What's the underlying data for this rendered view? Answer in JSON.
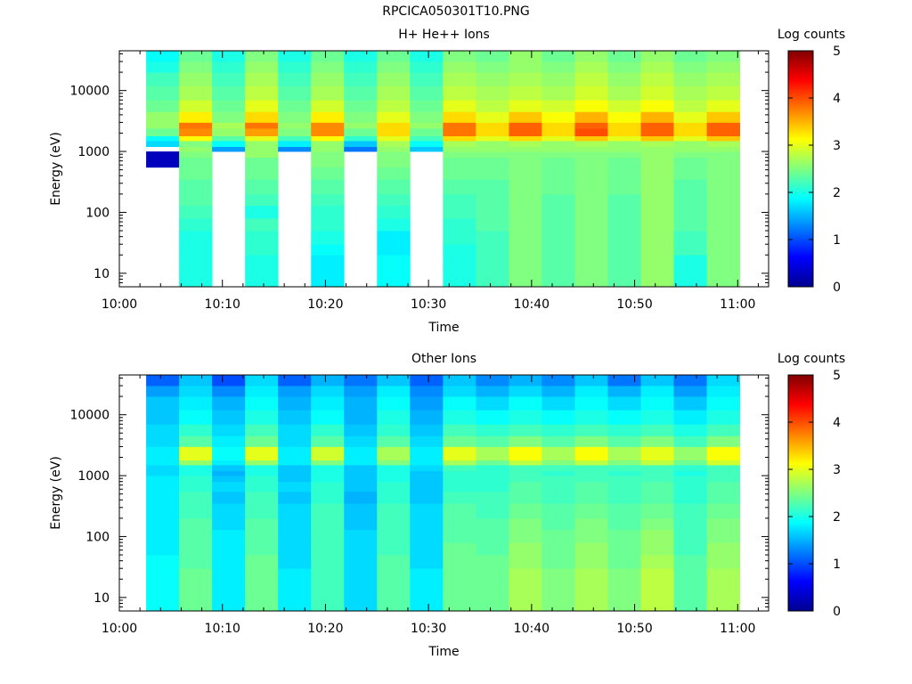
{
  "figure": {
    "title": "RPCICA050301T10.PNG"
  },
  "chart_data": [
    {
      "type": "heatmap",
      "title": "H+ He++ Ions",
      "xlabel": "Time",
      "ylabel": "Energy (eV)",
      "y_scale": "log",
      "ylim": [
        6,
        45000
      ],
      "xlim": [
        "10:00",
        "11:03"
      ],
      "x_ticks": [
        "10:00",
        "10:10",
        "10:20",
        "10:30",
        "10:40",
        "10:50",
        "11:00"
      ],
      "y_ticks": [
        "10",
        "100",
        "1000",
        "10000"
      ],
      "colorbar": {
        "label": "Log counts",
        "min": 0,
        "max": 5,
        "ticks": [
          "0",
          "1",
          "2",
          "3",
          "4",
          "5"
        ]
      },
      "time_bins": [
        {
          "start": "10:02.6",
          "end": "10:05.8"
        },
        {
          "start": "10:05.8",
          "end": "10:09.0"
        },
        {
          "start": "10:09.0",
          "end": "10:12.2"
        },
        {
          "start": "10:12.2",
          "end": "10:15.4"
        },
        {
          "start": "10:15.4",
          "end": "10:18.6"
        },
        {
          "start": "10:18.6",
          "end": "10:21.8"
        },
        {
          "start": "10:21.8",
          "end": "10:25.0"
        },
        {
          "start": "10:25.0",
          "end": "10:28.2"
        },
        {
          "start": "10:28.2",
          "end": "10:31.4"
        },
        {
          "start": "10:31.4",
          "end": "10:34.6"
        },
        {
          "start": "10:34.6",
          "end": "10:37.8"
        },
        {
          "start": "10:37.8",
          "end": "10:41.0"
        },
        {
          "start": "10:41.0",
          "end": "10:44.2"
        },
        {
          "start": "10:44.2",
          "end": "10:47.4"
        },
        {
          "start": "10:47.4",
          "end": "10:50.6"
        },
        {
          "start": "10:50.6",
          "end": "10:53.8"
        },
        {
          "start": "10:53.8",
          "end": "10:57.0"
        },
        {
          "start": "10:57.0",
          "end": "11:00.2"
        }
      ],
      "energy_edges": [
        6,
        8,
        12,
        20,
        30,
        50,
        80,
        130,
        200,
        350,
        550,
        800,
        1000,
        1200,
        1500,
        1800,
        2400,
        3000,
        4500,
        7000,
        12000,
        20000,
        30000,
        45000
      ],
      "values_log_counts": [
        [
          null,
          null,
          null,
          null,
          null,
          null,
          null,
          null,
          null,
          null,
          0.3,
          0.3,
          null,
          1.7,
          1.9,
          2.4,
          2.6,
          2.6,
          2.4,
          2.3,
          2.2,
          2.0,
          1.9
        ],
        [
          2.0,
          2.0,
          2.0,
          2.0,
          2.0,
          2.1,
          2.2,
          2.3,
          2.3,
          2.4,
          2.4,
          2.5,
          2.6,
          2.5,
          3.1,
          3.7,
          3.8,
          3.2,
          2.9,
          2.7,
          2.6,
          2.5,
          2.4
        ],
        [
          null,
          null,
          null,
          null,
          null,
          null,
          null,
          null,
          null,
          null,
          null,
          null,
          1.4,
          1.9,
          2.3,
          2.6,
          2.7,
          2.5,
          2.4,
          2.3,
          2.2,
          2.1,
          2.0
        ],
        [
          2.0,
          2.0,
          2.0,
          2.1,
          2.1,
          2.2,
          2.0,
          2.2,
          2.3,
          2.4,
          2.4,
          2.6,
          2.6,
          2.6,
          3.0,
          3.6,
          3.8,
          3.3,
          3.0,
          2.8,
          2.7,
          2.6,
          2.5
        ],
        [
          null,
          null,
          null,
          null,
          null,
          null,
          null,
          null,
          null,
          null,
          null,
          null,
          1.3,
          1.8,
          2.2,
          2.5,
          2.6,
          2.5,
          2.4,
          2.3,
          2.2,
          2.1,
          2.0
        ],
        [
          1.8,
          1.8,
          1.8,
          1.9,
          2.0,
          2.1,
          2.1,
          2.2,
          2.3,
          2.4,
          2.5,
          2.5,
          2.6,
          2.6,
          3.1,
          3.7,
          3.7,
          3.2,
          2.9,
          2.7,
          2.6,
          2.5,
          2.4
        ],
        [
          null,
          null,
          null,
          null,
          null,
          null,
          null,
          null,
          null,
          null,
          null,
          null,
          1.2,
          1.6,
          2.1,
          2.4,
          2.6,
          2.5,
          2.4,
          2.3,
          2.2,
          2.1,
          2.0
        ],
        [
          1.9,
          1.9,
          1.9,
          1.8,
          1.8,
          2.0,
          2.1,
          2.2,
          2.3,
          2.4,
          2.5,
          2.5,
          2.6,
          2.7,
          3.0,
          3.3,
          3.3,
          3.0,
          2.8,
          2.7,
          2.6,
          2.5,
          2.4
        ],
        [
          null,
          null,
          null,
          null,
          null,
          null,
          null,
          null,
          null,
          null,
          null,
          null,
          1.6,
          1.9,
          2.2,
          2.4,
          2.6,
          2.5,
          2.4,
          2.3,
          2.2,
          2.1,
          2.0
        ],
        [
          2.0,
          2.0,
          2.0,
          2.0,
          2.1,
          2.1,
          2.2,
          2.2,
          2.3,
          2.4,
          2.4,
          2.5,
          2.6,
          2.7,
          3.3,
          3.8,
          3.8,
          3.3,
          3.0,
          2.8,
          2.7,
          2.6,
          2.5
        ],
        [
          2.2,
          2.2,
          2.2,
          2.2,
          2.2,
          2.3,
          2.3,
          2.3,
          2.3,
          2.4,
          2.4,
          2.5,
          2.6,
          2.6,
          3.0,
          3.3,
          3.3,
          3.0,
          2.8,
          2.7,
          2.6,
          2.5,
          2.4
        ],
        [
          2.5,
          2.5,
          2.5,
          2.5,
          2.5,
          2.5,
          2.5,
          2.5,
          2.5,
          2.5,
          2.5,
          2.5,
          2.6,
          2.7,
          3.3,
          3.9,
          3.9,
          3.4,
          3.0,
          2.8,
          2.7,
          2.6,
          2.6
        ],
        [
          2.3,
          2.3,
          2.3,
          2.3,
          2.3,
          2.3,
          2.3,
          2.3,
          2.4,
          2.4,
          2.4,
          2.5,
          2.6,
          2.6,
          3.0,
          3.3,
          3.3,
          3.1,
          2.9,
          2.7,
          2.6,
          2.5,
          2.4
        ],
        [
          2.5,
          2.5,
          2.5,
          2.5,
          2.5,
          2.5,
          2.5,
          2.5,
          2.5,
          2.5,
          2.5,
          2.5,
          2.6,
          2.7,
          3.4,
          4.0,
          3.9,
          3.5,
          3.1,
          2.9,
          2.8,
          2.7,
          2.6
        ],
        [
          2.3,
          2.3,
          2.3,
          2.3,
          2.3,
          2.3,
          2.3,
          2.3,
          2.4,
          2.4,
          2.4,
          2.5,
          2.6,
          2.6,
          3.0,
          3.3,
          3.3,
          3.1,
          2.9,
          2.7,
          2.6,
          2.5,
          2.4
        ],
        [
          2.6,
          2.6,
          2.6,
          2.6,
          2.6,
          2.6,
          2.6,
          2.6,
          2.6,
          2.6,
          2.6,
          2.6,
          2.6,
          2.7,
          3.4,
          3.9,
          3.9,
          3.5,
          3.1,
          2.9,
          2.8,
          2.7,
          2.6
        ],
        [
          2.0,
          2.0,
          2.0,
          2.2,
          2.2,
          2.3,
          2.3,
          2.3,
          2.3,
          2.4,
          2.4,
          2.5,
          2.6,
          2.6,
          3.0,
          3.3,
          3.3,
          3.0,
          2.8,
          2.7,
          2.6,
          2.5,
          2.4
        ],
        [
          2.5,
          2.5,
          2.5,
          2.5,
          2.5,
          2.5,
          2.5,
          2.5,
          2.5,
          2.5,
          2.5,
          2.5,
          2.6,
          2.7,
          3.4,
          3.9,
          3.9,
          3.4,
          3.0,
          2.8,
          2.7,
          2.6,
          2.5
        ]
      ]
    },
    {
      "type": "heatmap",
      "title": "Other Ions",
      "xlabel": "Time",
      "ylabel": "Energy (eV)",
      "y_scale": "log",
      "ylim": [
        6,
        45000
      ],
      "xlim": [
        "10:00",
        "11:03"
      ],
      "x_ticks": [
        "10:00",
        "10:10",
        "10:20",
        "10:30",
        "10:40",
        "10:50",
        "11:00"
      ],
      "y_ticks": [
        "10",
        "100",
        "1000",
        "10000"
      ],
      "colorbar": {
        "label": "Log counts",
        "min": 0,
        "max": 5,
        "ticks": [
          "0",
          "1",
          "2",
          "3",
          "4",
          "5"
        ]
      },
      "energy_edges": [
        6,
        8,
        12,
        20,
        30,
        50,
        80,
        130,
        200,
        350,
        550,
        800,
        1000,
        1200,
        1500,
        1800,
        2400,
        3000,
        4500,
        7000,
        12000,
        20000,
        30000,
        45000
      ],
      "values_log_counts": [
        [
          1.9,
          1.9,
          1.9,
          1.9,
          1.9,
          1.8,
          1.8,
          1.8,
          1.8,
          1.8,
          1.8,
          1.8,
          1.7,
          1.7,
          1.8,
          1.8,
          1.8,
          1.7,
          1.7,
          1.6,
          1.6,
          1.4,
          1.1
        ],
        [
          2.4,
          2.4,
          2.4,
          2.4,
          2.3,
          2.3,
          2.3,
          2.3,
          2.2,
          2.2,
          2.1,
          2.1,
          2.0,
          2.0,
          2.6,
          3.0,
          3.0,
          2.3,
          2.1,
          1.9,
          1.8,
          1.7,
          1.6
        ],
        [
          1.8,
          1.8,
          1.8,
          1.8,
          1.8,
          1.8,
          1.8,
          1.7,
          1.7,
          1.6,
          1.7,
          1.6,
          1.5,
          1.6,
          1.8,
          1.9,
          1.9,
          1.8,
          1.7,
          1.6,
          1.5,
          1.3,
          1.0
        ],
        [
          2.4,
          2.4,
          2.4,
          2.4,
          2.4,
          2.3,
          2.3,
          2.3,
          2.2,
          2.2,
          2.1,
          2.1,
          2.0,
          2.0,
          2.6,
          3.0,
          3.0,
          2.4,
          2.2,
          2.0,
          1.9,
          1.8,
          1.7
        ],
        [
          1.8,
          1.8,
          1.8,
          1.8,
          1.7,
          1.7,
          1.7,
          1.7,
          1.7,
          1.6,
          1.7,
          1.6,
          1.6,
          1.6,
          1.8,
          1.8,
          1.8,
          1.7,
          1.7,
          1.6,
          1.5,
          1.4,
          1.1
        ],
        [
          2.2,
          2.2,
          2.2,
          2.2,
          2.2,
          2.2,
          2.2,
          2.2,
          2.2,
          2.1,
          2.1,
          2.0,
          2.0,
          2.0,
          2.5,
          2.9,
          2.9,
          2.3,
          2.1,
          1.9,
          1.8,
          1.7,
          1.5
        ],
        [
          1.7,
          1.7,
          1.7,
          1.7,
          1.7,
          1.7,
          1.7,
          1.6,
          1.6,
          1.5,
          1.6,
          1.6,
          1.6,
          1.6,
          1.8,
          1.8,
          1.8,
          1.7,
          1.6,
          1.5,
          1.5,
          1.4,
          1.2
        ],
        [
          2.3,
          2.3,
          2.3,
          2.3,
          2.3,
          2.2,
          2.2,
          2.2,
          2.2,
          2.1,
          2.1,
          2.0,
          2.0,
          2.0,
          2.5,
          2.7,
          2.7,
          2.3,
          2.1,
          2.0,
          1.9,
          1.8,
          1.6
        ],
        [
          1.8,
          1.8,
          1.8,
          1.8,
          1.7,
          1.7,
          1.7,
          1.7,
          1.7,
          1.6,
          1.6,
          1.6,
          1.6,
          1.7,
          1.8,
          1.8,
          1.8,
          1.7,
          1.6,
          1.5,
          1.4,
          1.3,
          1.1
        ],
        [
          2.4,
          2.4,
          2.4,
          2.4,
          2.4,
          2.4,
          2.3,
          2.3,
          2.3,
          2.2,
          2.1,
          2.1,
          2.1,
          2.2,
          2.7,
          3.0,
          3.0,
          2.4,
          2.2,
          2.0,
          1.9,
          1.7,
          1.6
        ],
        [
          2.4,
          2.4,
          2.4,
          2.4,
          2.4,
          2.3,
          2.3,
          2.3,
          2.2,
          2.2,
          2.1,
          2.1,
          2.1,
          2.1,
          2.4,
          2.7,
          2.7,
          2.3,
          2.1,
          1.9,
          1.7,
          1.5,
          1.3
        ],
        [
          2.7,
          2.7,
          2.7,
          2.7,
          2.6,
          2.6,
          2.5,
          2.5,
          2.4,
          2.3,
          2.3,
          2.2,
          2.2,
          2.2,
          2.8,
          3.1,
          3.1,
          2.5,
          2.2,
          2.0,
          1.9,
          1.7,
          1.5
        ],
        [
          2.5,
          2.5,
          2.5,
          2.5,
          2.4,
          2.4,
          2.4,
          2.3,
          2.3,
          2.2,
          2.2,
          2.2,
          2.1,
          2.2,
          2.5,
          2.7,
          2.7,
          2.3,
          2.1,
          1.9,
          1.7,
          1.5,
          1.3
        ],
        [
          2.7,
          2.7,
          2.7,
          2.7,
          2.6,
          2.6,
          2.5,
          2.5,
          2.4,
          2.3,
          2.3,
          2.2,
          2.2,
          2.2,
          2.8,
          3.1,
          3.1,
          2.5,
          2.2,
          2.0,
          1.9,
          1.8,
          1.6
        ],
        [
          2.5,
          2.5,
          2.5,
          2.5,
          2.4,
          2.4,
          2.4,
          2.3,
          2.3,
          2.2,
          2.2,
          2.2,
          2.1,
          2.2,
          2.5,
          2.7,
          2.7,
          2.3,
          2.1,
          1.9,
          1.7,
          1.5,
          1.2
        ],
        [
          2.8,
          2.8,
          2.8,
          2.8,
          2.7,
          2.6,
          2.6,
          2.5,
          2.4,
          2.3,
          2.3,
          2.2,
          2.2,
          2.2,
          2.8,
          3.0,
          3.0,
          2.5,
          2.2,
          2.0,
          1.9,
          1.8,
          1.6
        ],
        [
          2.3,
          2.3,
          2.3,
          2.3,
          2.3,
          2.2,
          2.2,
          2.2,
          2.2,
          2.1,
          2.1,
          2.1,
          2.0,
          2.1,
          2.4,
          2.6,
          2.6,
          2.2,
          2.0,
          1.8,
          1.6,
          1.4,
          1.2
        ],
        [
          2.7,
          2.7,
          2.7,
          2.7,
          2.6,
          2.6,
          2.5,
          2.5,
          2.4,
          2.3,
          2.3,
          2.2,
          2.2,
          2.2,
          2.9,
          3.1,
          3.1,
          2.5,
          2.2,
          2.0,
          1.9,
          1.8,
          1.7
        ]
      ]
    }
  ]
}
